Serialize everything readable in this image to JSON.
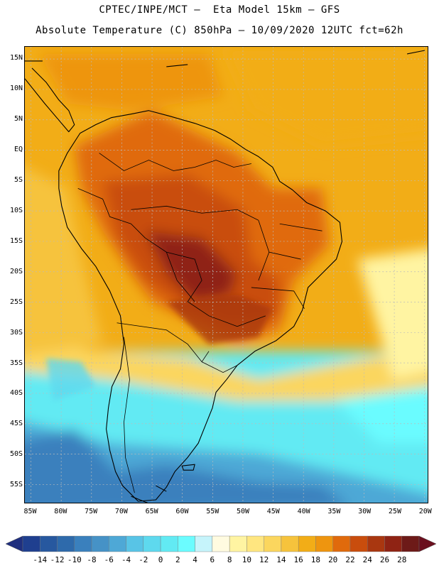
{
  "header": {
    "line1": "CPTEC/INPE/MCT –  Eta Model 15km – GFS",
    "line2": "Absolute Temperature (C) 850hPa – 10/09/2020 12UTC fct=62h"
  },
  "map": {
    "lat_range": [
      -58,
      17
    ],
    "lon_range": [
      -86,
      -19.5
    ],
    "lat_ticks": [
      "15N",
      "10N",
      "5N",
      "EQ",
      "5S",
      "10S",
      "15S",
      "20S",
      "25S",
      "30S",
      "35S",
      "40S",
      "45S",
      "50S",
      "55S"
    ],
    "lat_values": [
      15,
      10,
      5,
      0,
      -5,
      -10,
      -15,
      -20,
      -25,
      -30,
      -35,
      -40,
      -45,
      -50,
      -55
    ],
    "lon_ticks": [
      "85W",
      "80W",
      "75W",
      "70W",
      "65W",
      "60W",
      "55W",
      "50W",
      "45W",
      "40W",
      "35W",
      "30W",
      "25W",
      "20W"
    ],
    "lon_values": [
      -85,
      -80,
      -75,
      -70,
      -65,
      -60,
      -55,
      -50,
      -45,
      -40,
      -35,
      -30,
      -25,
      -20
    ],
    "variable": "Temperature 850hPa (C)"
  },
  "colorbar": {
    "labels": [
      "-14",
      "-12",
      "-10",
      "-8",
      "-6",
      "-4",
      "-2",
      "0",
      "2",
      "4",
      "6",
      "8",
      "10",
      "12",
      "14",
      "16",
      "18",
      "20",
      "22",
      "24",
      "26",
      "28"
    ],
    "colors": [
      "#1f3f8f",
      "#27589f",
      "#2e6aab",
      "#3a80bd",
      "#4692c6",
      "#4ea8d6",
      "#58c4e6",
      "#5ed9ee",
      "#62eaf3",
      "#6bfcff",
      "#c6f4fb",
      "#fffbe0",
      "#fff4a2",
      "#ffe680",
      "#fbd65e",
      "#f6c33c",
      "#f2ad17",
      "#ee950f",
      "#e06a0c",
      "#c94d0d",
      "#a93710",
      "#8f2314",
      "#6d1a18"
    ],
    "under_color": "#1f2f7f",
    "over_color": "#6b0f1e"
  }
}
